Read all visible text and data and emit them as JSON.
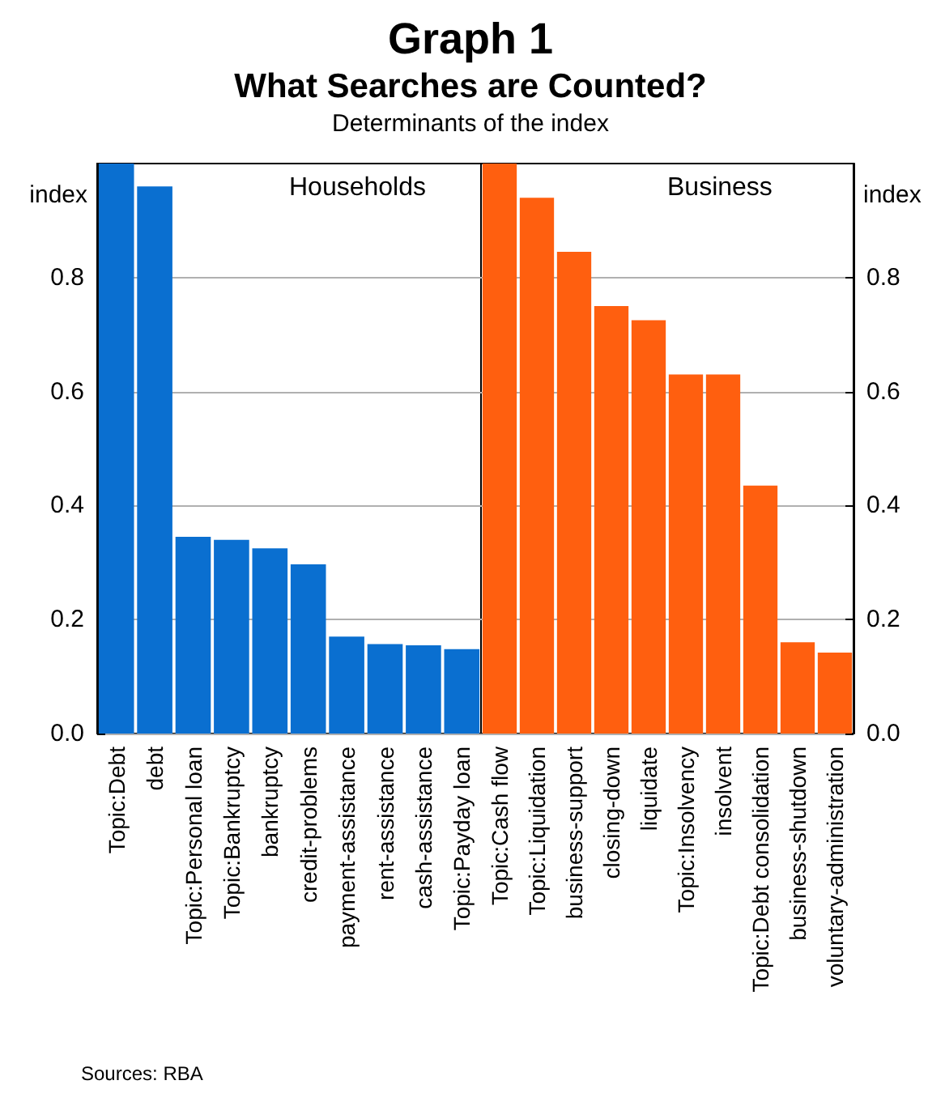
{
  "chart_data": [
    {
      "type": "bar",
      "title": "What Searches are Counted?",
      "subtitle": "Determinants of the index",
      "annotations": [
        "Graph 1",
        "Sources: RBA"
      ],
      "ylabel": "index",
      "categories": [
        "Topic:Debt",
        "debt",
        "Topic:Personal loan",
        "Topic:Bankruptcy",
        "bankruptcy",
        "credit-problems",
        "payment-assistance",
        "rent-assistance",
        "cash-assistance",
        "Topic:Payday loan"
      ],
      "series": [
        {
          "name": "Households",
          "color": "#0a6fd0",
          "values": [
            1.0,
            0.96,
            0.345,
            0.34,
            0.325,
            0.297,
            0.17,
            0.157,
            0.155,
            0.148
          ]
        }
      ],
      "ylim": [
        0,
        1
      ],
      "yticks": [
        {
          "value": 0,
          "label": "0.0"
        },
        {
          "value": 0.2,
          "label": "0.2"
        },
        {
          "value": 0.4,
          "label": "0.4"
        },
        {
          "value": 0.6,
          "label": "0.6"
        },
        {
          "value": 0.8,
          "label": "0.8"
        }
      ],
      "grid": "y"
    },
    {
      "type": "bar",
      "y2label": "index",
      "categories": [
        "Topic:Cash flow",
        "Topic:Liquidation",
        "business-support",
        "closing-down",
        "liquidate",
        "Topic:Insolvency",
        "insolvent",
        "Topic:Debt consolidation",
        "business-shutdown",
        "voluntary-administration"
      ],
      "series": [
        {
          "name": "Business",
          "color": "#ff5f0f",
          "axis": "y2",
          "values": [
            1.0,
            0.94,
            0.845,
            0.75,
            0.725,
            0.63,
            0.63,
            0.435,
            0.16,
            0.142
          ]
        }
      ],
      "y2lim": [
        0,
        1
      ],
      "y2ticks": [
        {
          "value": 0,
          "label": "0.0"
        },
        {
          "value": 0.2,
          "label": "0.2"
        },
        {
          "value": 0.4,
          "label": "0.4"
        },
        {
          "value": 0.6,
          "label": "0.6"
        },
        {
          "value": 0.8,
          "label": "0.8"
        }
      ],
      "grid": "y"
    }
  ]
}
